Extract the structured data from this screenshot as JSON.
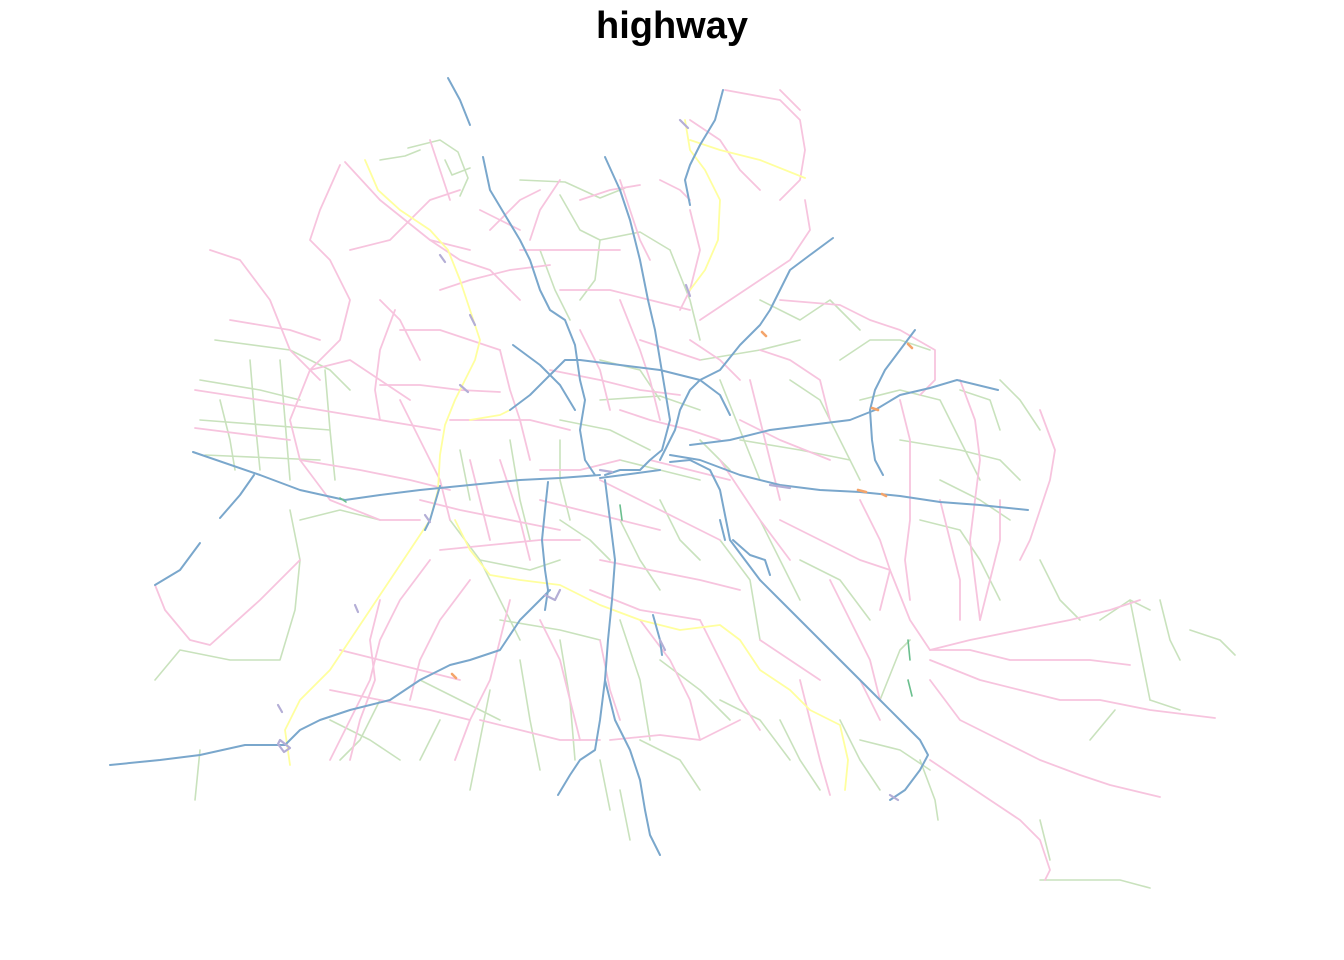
{
  "map": {
    "title": "highway",
    "layer_type": "road-network",
    "classes": [
      {
        "key": "motorway",
        "color": "#7aa7cc"
      },
      {
        "key": "primary",
        "color": "#f7c4de"
      },
      {
        "key": "secondary",
        "color": "#c9e2bd"
      },
      {
        "key": "trunk",
        "color": "#ffff9e"
      },
      {
        "key": "link",
        "color": "#b4aed6"
      },
      {
        "key": "junction",
        "color": "#f4a46a"
      },
      {
        "key": "other",
        "color": "#6bbf8e"
      }
    ]
  }
}
